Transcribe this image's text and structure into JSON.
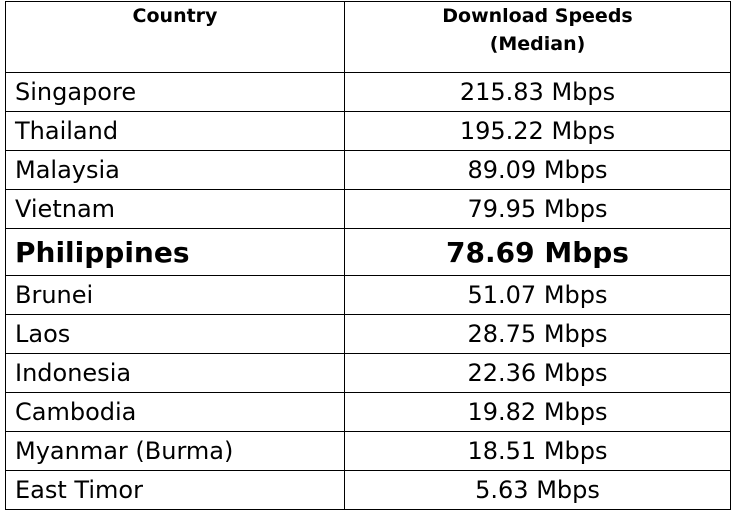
{
  "table": {
    "headers": {
      "country": "Country",
      "speed_line1": "Download Speeds",
      "speed_line2": "(Median)"
    },
    "rows": [
      {
        "country": "Singapore",
        "speed": "215.83 Mbps",
        "highlight": false
      },
      {
        "country": "Thailand",
        "speed": "195.22 Mbps",
        "highlight": false
      },
      {
        "country": "Malaysia",
        "speed": "89.09 Mbps",
        "highlight": false
      },
      {
        "country": "Vietnam",
        "speed": "79.95 Mbps",
        "highlight": false
      },
      {
        "country": "Philippines",
        "speed": "78.69 Mbps",
        "highlight": true
      },
      {
        "country": "Brunei",
        "speed": "51.07 Mbps",
        "highlight": false
      },
      {
        "country": "Laos",
        "speed": "28.75 Mbps",
        "highlight": false
      },
      {
        "country": "Indonesia",
        "speed": "22.36 Mbps",
        "highlight": false
      },
      {
        "country": "Cambodia",
        "speed": "19.82 Mbps",
        "highlight": false
      },
      {
        "country": "Myanmar (Burma)",
        "speed": "18.51 Mbps",
        "highlight": false
      },
      {
        "country": "East Timor",
        "speed": "5.63 Mbps",
        "highlight": false
      }
    ]
  }
}
